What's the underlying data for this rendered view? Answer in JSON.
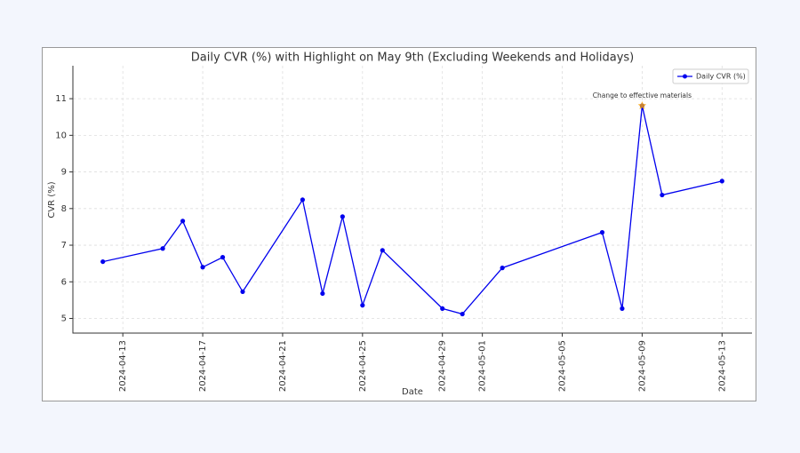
{
  "chart_data": {
    "type": "line",
    "title": "Daily CVR (%) with Highlight on May 9th (Excluding Weekends and Holidays)",
    "x_label": "Date",
    "y_label": "CVR (%)",
    "x": [
      "2024-04-12",
      "2024-04-15",
      "2024-04-16",
      "2024-04-17",
      "2024-04-18",
      "2024-04-19",
      "2024-04-22",
      "2024-04-23",
      "2024-04-24",
      "2024-04-25",
      "2024-04-26",
      "2024-04-29",
      "2024-04-30",
      "2024-05-02",
      "2024-05-07",
      "2024-05-08",
      "2024-05-09",
      "2024-05-10",
      "2024-05-13"
    ],
    "series": [
      {
        "name": "Daily CVR (%)",
        "color": "#0000ee",
        "values": [
          6.55,
          6.91,
          7.66,
          6.4,
          6.67,
          5.73,
          8.24,
          5.68,
          7.78,
          5.36,
          6.86,
          5.27,
          5.12,
          6.38,
          7.35,
          5.27,
          10.81,
          8.37,
          8.75
        ]
      }
    ],
    "annotations": [
      {
        "text": "Change to effective materials",
        "index": 16,
        "color": "orange"
      }
    ],
    "xlim": [
      "2024-04-10T12:00:00Z",
      "2024-05-14T12:00:00Z"
    ],
    "xticks": [
      "2024-04-13",
      "2024-04-17",
      "2024-04-21",
      "2024-04-25",
      "2024-04-29",
      "2024-05-01",
      "2024-05-05",
      "2024-05-09",
      "2024-05-13"
    ],
    "ylim": [
      4.6,
      11.9
    ],
    "yticks": [
      5,
      6,
      7,
      8,
      9,
      10,
      11
    ],
    "grid": true,
    "legend": "upper right"
  }
}
